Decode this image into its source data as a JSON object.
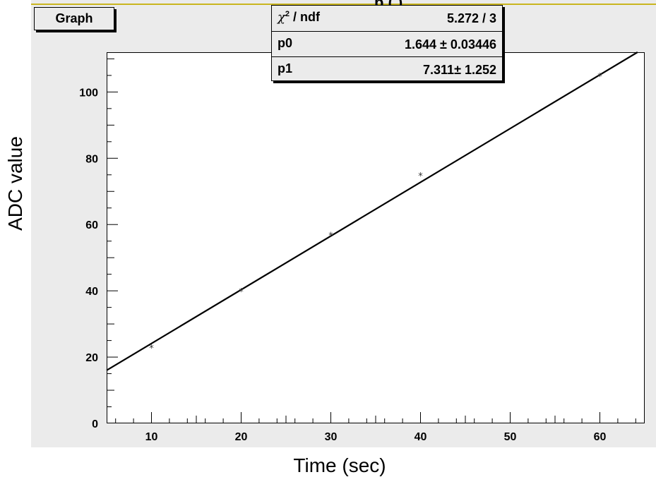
{
  "graph_label": "Graph",
  "stats": {
    "rows": [
      {
        "key_symbol": "χ",
        "key_sup": "2",
        "key_rest": " / ndf",
        "value": "5.272 / 3"
      },
      {
        "key": "p0",
        "value": "1.644 ± 0.03446"
      },
      {
        "key": "p1",
        "value": "7.311± 1.252"
      }
    ]
  },
  "title_fragment": "p                (    )",
  "colors": {
    "panel": "#ebebeb",
    "frame": "#000000",
    "accent_line": "#c9b51f"
  },
  "chart_data": {
    "type": "scatter",
    "xlabel": "Time (sec)",
    "ylabel": "ADC value",
    "xlim": [
      5,
      65
    ],
    "ylim": [
      0,
      112
    ],
    "x_ticks": [
      10,
      20,
      30,
      40,
      50,
      60
    ],
    "y_ticks": [
      0,
      20,
      40,
      60,
      80,
      100
    ],
    "grid": false,
    "marker": "*",
    "series": [
      {
        "x": [
          10,
          20,
          30,
          40,
          60
        ],
        "y": [
          23,
          40,
          57,
          75,
          105
        ]
      }
    ],
    "fit_line": {
      "x": [
        5,
        64.2
      ],
      "y": [
        16,
        112
      ]
    }
  }
}
